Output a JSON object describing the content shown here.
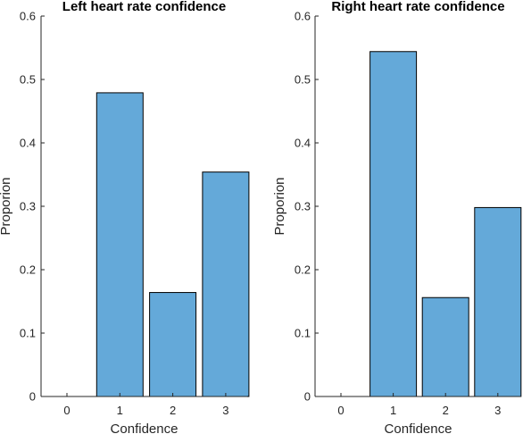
{
  "chart_data": [
    {
      "type": "bar",
      "title": "Left heart rate confidence",
      "xlabel": "Confidence",
      "ylabel": "Proporion",
      "categories": [
        "0",
        "1",
        "2",
        "3"
      ],
      "values": [
        0,
        0.479,
        0.164,
        0.354
      ],
      "ylim": [
        0,
        0.6
      ],
      "yticks": [
        "0",
        "0.1",
        "0.2",
        "0.3",
        "0.4",
        "0.5",
        "0.6"
      ],
      "bar_color": "#64a9d9",
      "grid": false
    },
    {
      "type": "bar",
      "title": "Right heart rate confidence",
      "xlabel": "Confidence",
      "ylabel": "Proporion",
      "categories": [
        "0",
        "1",
        "2",
        "3"
      ],
      "values": [
        0,
        0.544,
        0.156,
        0.298
      ],
      "ylim": [
        0,
        0.6
      ],
      "yticks": [
        "0",
        "0.1",
        "0.2",
        "0.3",
        "0.4",
        "0.5",
        "0.6"
      ],
      "bar_color": "#64a9d9",
      "grid": false
    }
  ]
}
